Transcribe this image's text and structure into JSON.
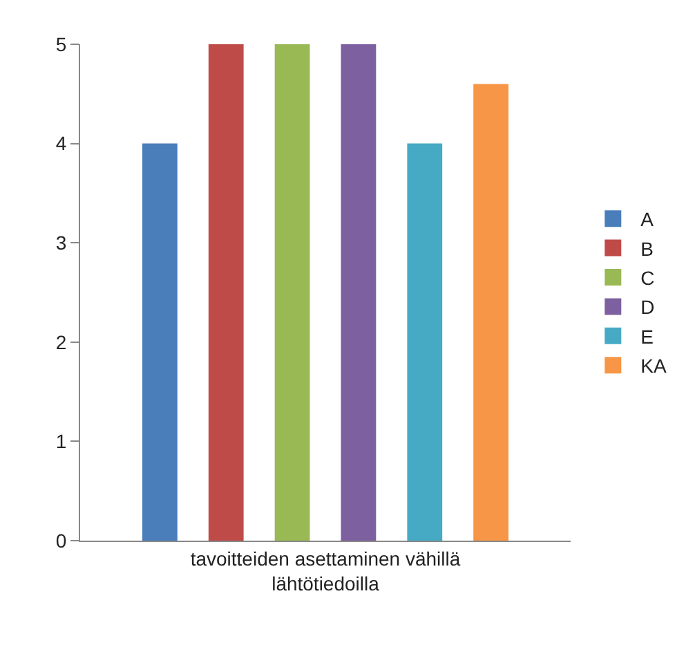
{
  "chart_data": {
    "type": "bar",
    "categories": [
      "tavoitteiden asettaminen vähillä lähtötiedoilla"
    ],
    "series": [
      {
        "name": "A",
        "color": "#4a7ebb",
        "values": [
          4
        ]
      },
      {
        "name": "B",
        "color": "#be4b48",
        "values": [
          5
        ]
      },
      {
        "name": "C",
        "color": "#98b954",
        "values": [
          5
        ]
      },
      {
        "name": "D",
        "color": "#7d60a0",
        "values": [
          5
        ]
      },
      {
        "name": "E",
        "color": "#46aac5",
        "values": [
          4
        ]
      },
      {
        "name": "KA",
        "color": "#f79646",
        "values": [
          4.6
        ]
      }
    ],
    "ylim": [
      0,
      5
    ],
    "yticks": [
      0,
      1,
      2,
      3,
      4,
      5
    ],
    "grid": false,
    "legend": "right"
  }
}
